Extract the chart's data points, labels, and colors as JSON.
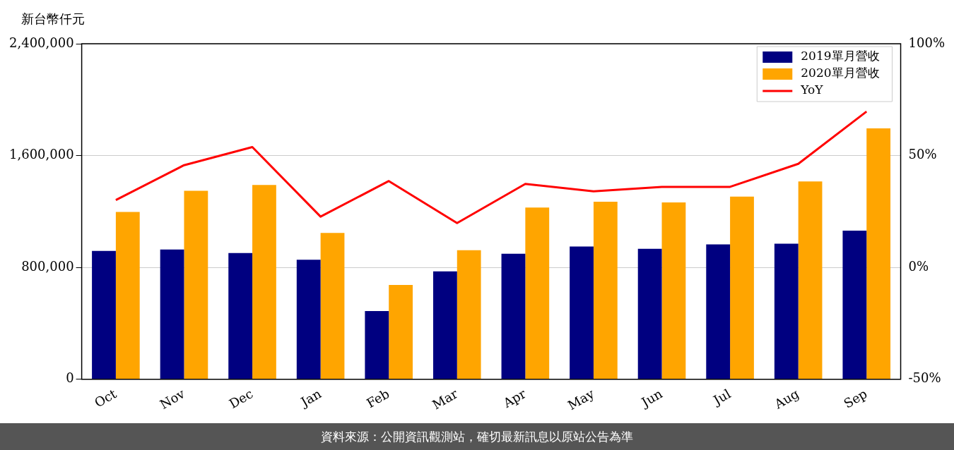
{
  "chart_data": {
    "type": "bar",
    "ylabel": "新台幣仟元",
    "categories": [
      "Oct",
      "Nov",
      "Dec",
      "Jan",
      "Feb",
      "Mar",
      "Apr",
      "May",
      "Jun",
      "Jul",
      "Aug",
      "Sep"
    ],
    "series": [
      {
        "name": "2019單月營收",
        "color": "#000080",
        "values": [
          918000,
          928000,
          902000,
          855000,
          487000,
          772000,
          897000,
          949000,
          933000,
          964000,
          969000,
          1063000
        ]
      },
      {
        "name": "2020單月營收",
        "color": "#ffa500",
        "values": [
          1197000,
          1348000,
          1389000,
          1047000,
          674000,
          923000,
          1228000,
          1270000,
          1265000,
          1306000,
          1415000,
          1794000
        ]
      },
      {
        "name": "YoY",
        "type": "line",
        "axis": "y2",
        "color": "#ff0000",
        "values": [
          30.1,
          45.7,
          53.8,
          22.7,
          38.6,
          19.8,
          37.3,
          34.0,
          36.0,
          36.0,
          46.3,
          69.7
        ]
      }
    ],
    "ylim": [
      0,
      2400000
    ],
    "yticks": [
      {
        "value": 0,
        "label": "0"
      },
      {
        "value": 800000,
        "label": "800,000"
      },
      {
        "value": 1600000,
        "label": "1,600,000"
      },
      {
        "value": 2400000,
        "label": "2,400,000"
      }
    ],
    "y2lim": [
      -50,
      100
    ],
    "y2ticks": [
      {
        "value": -50,
        "label": "-50%"
      },
      {
        "value": 0,
        "label": "0%"
      },
      {
        "value": 50,
        "label": "50%"
      },
      {
        "value": 100,
        "label": "100%"
      }
    ],
    "grid": "y",
    "legend": "top right",
    "marker": "none",
    "line_style": "solid",
    "annotations": [
      "資料來源：公開資訊觀測站，確切最新訊息以原站公告為準"
    ]
  }
}
